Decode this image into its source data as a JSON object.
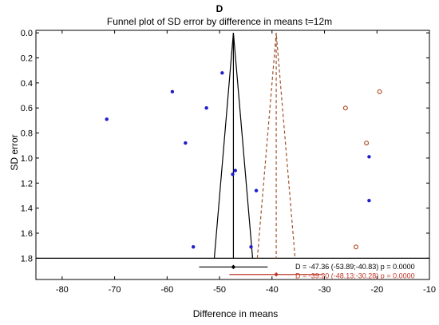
{
  "chart_data": {
    "type": "scatter",
    "panel_label": "D",
    "title": "Funnel plot of SD error by difference in means t=12m",
    "xlabel": "Difference in means",
    "ylabel": "SD error",
    "xlim": [
      -85,
      -10
    ],
    "ylim": [
      -0.02,
      1.97
    ],
    "y_inverted": true,
    "x_ticks": [
      -80,
      -70,
      -60,
      -50,
      -40,
      -30,
      -20,
      -10
    ],
    "y_ticks": [
      0.0,
      0.2,
      0.4,
      0.6,
      0.8,
      1.0,
      1.2,
      1.4,
      1.6,
      1.8
    ],
    "y_tick_labels": [
      "0.0",
      "0.2",
      "0.4",
      "0.6",
      "0.8",
      "1.0",
      "1.2",
      "1.4",
      "1.6",
      "1.8"
    ],
    "series": [
      {
        "color": "#1f1fcf",
        "marker": "filled-dot",
        "points": [
          {
            "x": -71.5,
            "y": 0.69
          },
          {
            "x": -59.0,
            "y": 0.47
          },
          {
            "x": -56.5,
            "y": 0.88
          },
          {
            "x": -52.5,
            "y": 0.6
          },
          {
            "x": -49.5,
            "y": 0.32
          },
          {
            "x": -47.5,
            "y": 1.13
          },
          {
            "x": -47.0,
            "y": 1.1
          },
          {
            "x": -43.0,
            "y": 1.26
          },
          {
            "x": -44.0,
            "y": 1.71
          },
          {
            "x": -55.0,
            "y": 1.71
          },
          {
            "x": -21.5,
            "y": 0.99
          },
          {
            "x": -21.5,
            "y": 1.34
          }
        ]
      },
      {
        "color": "#b0502a",
        "marker": "open-dot",
        "points": [
          {
            "x": -26.0,
            "y": 0.6
          },
          {
            "x": -19.5,
            "y": 0.47
          },
          {
            "x": -22.0,
            "y": 0.88
          },
          {
            "x": -24.0,
            "y": 1.71
          }
        ]
      }
    ],
    "funnels": [
      {
        "center": -47.36,
        "apex_y": 0.0,
        "base_y": 1.8,
        "left": -51.0,
        "right": -43.7,
        "color": "#000000",
        "dash": false
      },
      {
        "center": -39.2,
        "apex_y": 0.0,
        "base_y": 1.8,
        "left": -42.8,
        "right": -35.6,
        "color": "#a0522d",
        "dash": true
      }
    ],
    "baseline_y": 1.8,
    "summaries": [
      {
        "estimate": -47.36,
        "ci": [
          -53.89,
          -40.83
        ],
        "y": 1.87,
        "color": "#000000",
        "label": "D = -47.36 (-53.89;-40.83) p = 0.0000"
      },
      {
        "estimate": -39.2,
        "ci": [
          -48.13,
          -30.28
        ],
        "y": 1.93,
        "color": "#c0392b",
        "label": "D = -39.20 (-48.13;-30.28) p = 0.0000"
      }
    ]
  }
}
